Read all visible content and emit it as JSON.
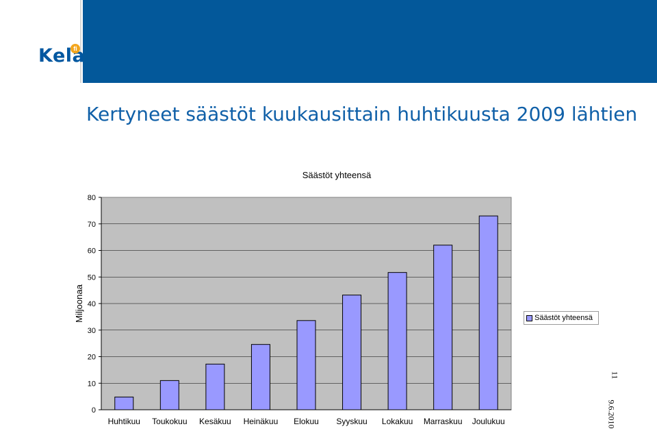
{
  "header": {
    "logo_text": "Kela",
    "logo_badge": "fi"
  },
  "slide_title": "Kertyneet säästöt kuukausittain huhtikuusta 2009 lähtien",
  "footer": {
    "page_number": "11",
    "date": "9.6.2010"
  },
  "colors": {
    "header_blue": "#03589a",
    "plot_background": "#c0c0c0",
    "bar_fill": "#9999ff",
    "title_blue": "#1060a8"
  },
  "chart_data": {
    "type": "bar",
    "title": "Säästöt yhteensä",
    "xlabel": "",
    "ylabel": "Miljoonaa",
    "ylim": [
      0,
      80
    ],
    "yticks": [
      0,
      10,
      20,
      30,
      40,
      50,
      60,
      70,
      80
    ],
    "grid": true,
    "legend_position": "right",
    "categories": [
      "Huhtikuu",
      "Toukokuu",
      "Kesäkuu",
      "Heinäkuu",
      "Elokuu",
      "Syyskuu",
      "Lokakuu",
      "Marraskuu",
      "Joulukuu"
    ],
    "series": [
      {
        "name": "Säästöt yhteensä",
        "values": [
          4.8,
          11,
          17.2,
          24.6,
          33.6,
          43.2,
          51.7,
          62,
          73
        ]
      }
    ]
  }
}
